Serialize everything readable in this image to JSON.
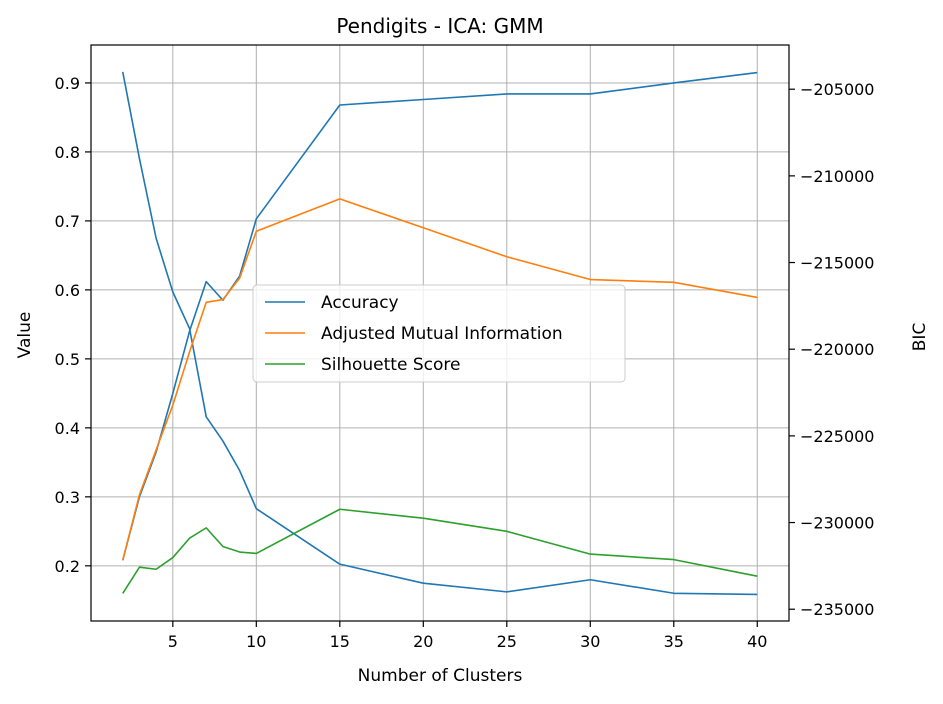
{
  "chart_data": {
    "type": "line",
    "title": "Pendigits - ICA: GMM",
    "xlabel": "Number of Clusters",
    "ylabel": "Value",
    "y2label": "BIC",
    "xlim": [
      0.1,
      41.9
    ],
    "ylim": [
      0.12,
      0.955
    ],
    "y2lim": [
      -235680,
      -202450
    ],
    "xticks": [
      5,
      10,
      15,
      20,
      25,
      30,
      35,
      40
    ],
    "yticks": [
      0.2,
      0.3,
      0.4,
      0.5,
      0.6,
      0.7,
      0.8,
      0.9
    ],
    "y2ticks": [
      -235000,
      -230000,
      -225000,
      -220000,
      -215000,
      -210000,
      -205000
    ],
    "y2ticklabels": [
      "−235000",
      "−230000",
      "−225000",
      "−220000",
      "−215000",
      "−210000",
      "−205000"
    ],
    "grid": true,
    "legend_position": "center",
    "x": [
      2,
      3,
      4,
      5,
      6,
      7,
      8,
      9,
      10,
      15,
      20,
      25,
      30,
      35,
      40
    ],
    "series": [
      {
        "name": "Accuracy",
        "axis": "left",
        "color": "#1f77b4",
        "values": [
          0.208,
          0.3,
          0.365,
          0.45,
          0.54,
          0.612,
          0.585,
          0.62,
          0.703,
          0.868,
          0.876,
          0.884,
          0.884,
          0.9,
          0.915
        ]
      },
      {
        "name": "Adjusted Mutual Information",
        "axis": "left",
        "color": "#ff7f0e",
        "values": [
          0.208,
          0.303,
          0.368,
          0.433,
          0.51,
          0.582,
          0.586,
          0.617,
          0.685,
          0.732,
          0.69,
          0.648,
          0.615,
          0.611,
          0.589
        ]
      },
      {
        "name": "Silhouette Score",
        "axis": "left",
        "color": "#2ca02c",
        "values": [
          0.16,
          0.198,
          0.195,
          0.212,
          0.24,
          0.255,
          0.228,
          0.22,
          0.218,
          0.282,
          0.269,
          0.25,
          0.217,
          0.209,
          0.185
        ]
      },
      {
        "name": "BIC",
        "axis": "right",
        "color": "#1f77b4",
        "values": [
          -204000,
          -209000,
          -213600,
          -216700,
          -218800,
          -223900,
          -225300,
          -227000,
          -229200,
          -232400,
          -233500,
          -234000,
          -233300,
          -234080,
          -234150
        ]
      }
    ]
  }
}
